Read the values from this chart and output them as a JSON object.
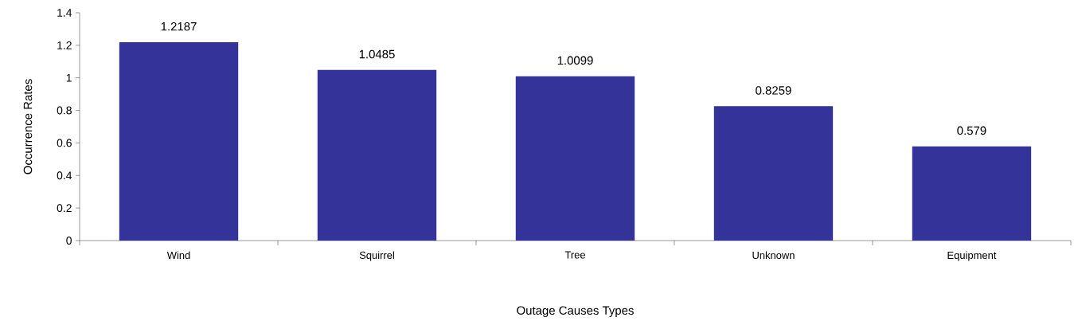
{
  "chart_data": {
    "type": "bar",
    "xlabel": "Outage Causes Types",
    "ylabel": "Occurrence Rates",
    "categories": [
      "Wind",
      "Squirrel",
      "Tree",
      "Unknown",
      "Equipment"
    ],
    "values": [
      1.2187,
      1.0485,
      1.0099,
      0.8259,
      0.579
    ],
    "color": "#333399",
    "ylim": [
      0,
      1.4
    ],
    "yticks": [
      0,
      0.2,
      0.4,
      0.6,
      0.8,
      1,
      1.2,
      1.4
    ],
    "data_labels": true,
    "grid": false
  }
}
